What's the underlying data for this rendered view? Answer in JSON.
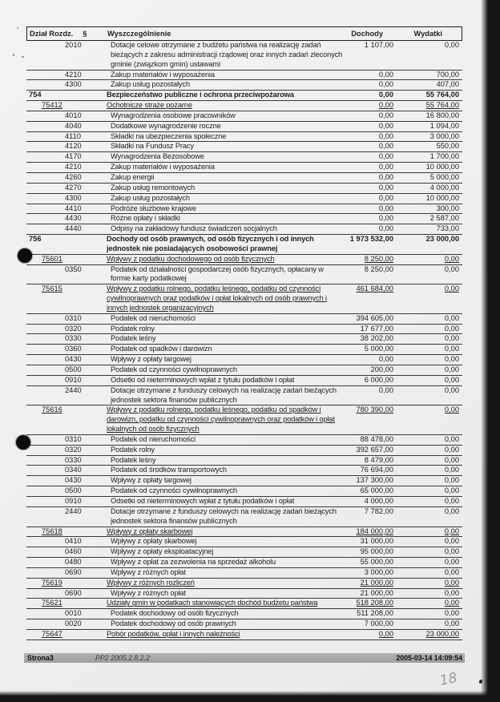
{
  "page": {
    "handwritten_number": "18"
  },
  "header": {
    "col_dzial_rozdz": "Dział Rozdz.",
    "col_paragraph": "§",
    "col_name": "Wyszczególnienie",
    "col_dochody": "Dochody",
    "col_wydatki": "Wydatki"
  },
  "footer": {
    "page_label": "Strona3",
    "app_version": "PP2 2005.2.8.2.2",
    "timestamp": "2005-03-14 14:09:54"
  },
  "table": {
    "rows": [
      {
        "level": "par",
        "code": "2010",
        "name": "Dotacje celowe otrzymane z budżetu państwa na realizację zadań bieżących z zakresu administracji rządowej oraz innych zadań zleconych gminie (związkom gmin) ustawami",
        "dochody": "1 107,00",
        "wydatki": "0,00"
      },
      {
        "level": "par",
        "code": "4210",
        "name": "Zakup materiałów i wyposażenia",
        "dochody": "0,00",
        "wydatki": "700,00"
      },
      {
        "level": "par",
        "code": "4300",
        "name": "Zakup usług pozostałych",
        "dochody": "0,00",
        "wydatki": "407,00"
      },
      {
        "level": "dzial",
        "code": "754",
        "name": "Bezpieczeństwo publiczne i ochrona przeciwpożarowa",
        "dochody": "0,00",
        "wydatki": "55 764,00"
      },
      {
        "level": "rozdz",
        "code": "75412",
        "name": "Ochotnicze straże pożarne",
        "dochody": "0,00",
        "wydatki": "55 764,00"
      },
      {
        "level": "par",
        "code": "4010",
        "name": "Wynagrodzenia osobowe pracowników",
        "dochody": "0,00",
        "wydatki": "16 800,00"
      },
      {
        "level": "par",
        "code": "4040",
        "name": "Dodatkowe wynagrodzenie roczne",
        "dochody": "0,00",
        "wydatki": "1 094,00"
      },
      {
        "level": "par",
        "code": "4110",
        "name": "Składki na ubezpieczenia społeczne",
        "dochody": "0,00",
        "wydatki": "3 000,00"
      },
      {
        "level": "par",
        "code": "4120",
        "name": "Składki na Fundusz Pracy",
        "dochody": "0,00",
        "wydatki": "550,00"
      },
      {
        "level": "par",
        "code": "4170",
        "name": "Wynagrodzenia Bezosobowe",
        "dochody": "0,00",
        "wydatki": "1 700,00"
      },
      {
        "level": "par",
        "code": "4210",
        "name": "Zakup materiałów i wyposażenia",
        "dochody": "0,00",
        "wydatki": "10 000,00"
      },
      {
        "level": "par",
        "code": "4260",
        "name": "Zakup energii",
        "dochody": "0,00",
        "wydatki": "5 000,00"
      },
      {
        "level": "par",
        "code": "4270",
        "name": "Zakup usług remontowych",
        "dochody": "0,00",
        "wydatki": "4 000,00"
      },
      {
        "level": "par",
        "code": "4300",
        "name": "Zakup usług pozostałych",
        "dochody": "0,00",
        "wydatki": "10 000,00"
      },
      {
        "level": "par",
        "code": "4410",
        "name": "Podróże służbowe krajowe",
        "dochody": "0,00",
        "wydatki": "300,00"
      },
      {
        "level": "par",
        "code": "4430",
        "name": "Różne opłaty i składki",
        "dochody": "0,00",
        "wydatki": "2 587,00"
      },
      {
        "level": "par",
        "code": "4440",
        "name": "Odpisy na zakładowy fundusz świadczeń socjalnych",
        "dochody": "0,00",
        "wydatki": "733,00"
      },
      {
        "level": "dzial",
        "code": "756",
        "name": "Dochody od osób prawnych, od osób fizycznych i od innych jednostek nie posiadających osobowości prawnej",
        "dochody": "1 973 532,00",
        "wydatki": "23 000,00"
      },
      {
        "level": "rozdz",
        "code": "75601",
        "name": "Wpływy z podatku dochodowego od osób fizycznych",
        "dochody": "8 250,00",
        "wydatki": "0,00"
      },
      {
        "level": "par",
        "code": "0350",
        "name": "Podatek od działalności gospodarczej osób fizycznych, opłacany w formie karty podatkowej",
        "dochody": "8 250,00",
        "wydatki": "0,00"
      },
      {
        "level": "rozdz",
        "code": "75615",
        "name": "Wpływy z podatku rolnego, podatku leśnego, podatku od czynności cywilnoprawnych oraz podatków i opłat lokalnych od osób prawnych i innych jednostek organizacyjnych",
        "dochody": "461 684,00",
        "wydatki": "0,00"
      },
      {
        "level": "par",
        "code": "0310",
        "name": "Podatek od nieruchomości",
        "dochody": "394 605,00",
        "wydatki": "0,00"
      },
      {
        "level": "par",
        "code": "0320",
        "name": "Podatek rolny",
        "dochody": "17 677,00",
        "wydatki": "0,00"
      },
      {
        "level": "par",
        "code": "0330",
        "name": "Podatek leśny",
        "dochody": "38 202,00",
        "wydatki": "0,00"
      },
      {
        "level": "par",
        "code": "0360",
        "name": "Podatek od spadków i darowizn",
        "dochody": "5 000,00",
        "wydatki": "0,00"
      },
      {
        "level": "par",
        "code": "0430",
        "name": "Wpływy z opłaty targowej",
        "dochody": "0,00",
        "wydatki": "0,00"
      },
      {
        "level": "par",
        "code": "0500",
        "name": "Podatek od czynności cywilnoprawnych",
        "dochody": "200,00",
        "wydatki": "0,00"
      },
      {
        "level": "par",
        "code": "0910",
        "name": "Odsetki od nieterminowych wpłat z tytułu podatków i opłat",
        "dochody": "6 000,00",
        "wydatki": "0,00"
      },
      {
        "level": "par",
        "code": "2440",
        "name": "Dotacje otrzymane z funduszy celowych na realizację zadań bieżących jednostek sektora finansów publicznych",
        "dochody": "0,00",
        "wydatki": "0,00"
      },
      {
        "level": "rozdz",
        "code": "75616",
        "name": "Wpływy z podatku rolnego, podatku leśnego, podatku od spadków i darowizn, podatku od czynności cywilnoprawnych oraz podatków i opłat lokalnych od osób fizycznych",
        "dochody": "780 390,00",
        "wydatki": "0,00"
      },
      {
        "level": "par",
        "code": "0310",
        "name": "Podatek od nieruchomości",
        "dochody": "88 478,00",
        "wydatki": "0,00"
      },
      {
        "level": "par",
        "code": "0320",
        "name": "Podatek rolny",
        "dochody": "392 657,00",
        "wydatki": "0,00"
      },
      {
        "level": "par",
        "code": "0330",
        "name": "Podatek leśny",
        "dochody": "8 479,00",
        "wydatki": "0,00"
      },
      {
        "level": "par",
        "code": "0340",
        "name": "Podatek od środków transportowych",
        "dochody": "76 694,00",
        "wydatki": "0,00"
      },
      {
        "level": "par",
        "code": "0430",
        "name": "Wpływy z opłaty targowej",
        "dochody": "137 300,00",
        "wydatki": "0,00"
      },
      {
        "level": "par",
        "code": "0500",
        "name": "Podatek od czynności cywilnoprawnych",
        "dochody": "65 000,00",
        "wydatki": "0,00"
      },
      {
        "level": "par",
        "code": "0910",
        "name": "Odsetki od nieterminowych wpłat z tytułu podatków i opłat",
        "dochody": "4 000,00",
        "wydatki": "0,00"
      },
      {
        "level": "par",
        "code": "2440",
        "name": "Dotacje otrzymane z funduszy celowych na realizację zadań bieżących jednostek sektora finansów publicznych",
        "dochody": "7 782,00",
        "wydatki": "0,00"
      },
      {
        "level": "rozdz",
        "code": "75618",
        "name": "Wpływy z opłaty skarbowej",
        "dochody": "184 000,00",
        "wydatki": "0,00"
      },
      {
        "level": "par",
        "code": "0410",
        "name": "Wpływy z opłaty skarbowej",
        "dochody": "31 000,00",
        "wydatki": "0,00"
      },
      {
        "level": "par",
        "code": "0460",
        "name": "Wpływy z opłaty eksploatacyjnej",
        "dochody": "95 000,00",
        "wydatki": "0,00"
      },
      {
        "level": "par",
        "code": "0480",
        "name": "Wpływy z opłat za zezwolenia na sprzedaż alkoholu",
        "dochody": "55 000,00",
        "wydatki": "0,00"
      },
      {
        "level": "par",
        "code": "0690",
        "name": "Wpływy z różnych opłat",
        "dochody": "3 000,00",
        "wydatki": "0,00"
      },
      {
        "level": "rozdz",
        "code": "75619",
        "name": "Wpływy z różnych rozliczeń",
        "dochody": "21 000,00",
        "wydatki": "0,00"
      },
      {
        "level": "par",
        "code": "0690",
        "name": "Wpływy z różnych opłat",
        "dochody": "21 000,00",
        "wydatki": "0,00"
      },
      {
        "level": "rozdz",
        "code": "75621",
        "name": "Udziały gmin w podatkach stanowiących dochód budżetu państwa",
        "dochody": "518 208,00",
        "wydatki": "0,00"
      },
      {
        "level": "par",
        "code": "0010",
        "name": "Podatek dochodowy od osób fizycznych",
        "dochody": "511 208,00",
        "wydatki": "0,00"
      },
      {
        "level": "par",
        "code": "0020",
        "name": "Podatek dochodowy od osób prawnych",
        "dochody": "7 000,00",
        "wydatki": "0,00"
      },
      {
        "level": "rozdz",
        "code": "75647",
        "name": "Pobór podatków, opłat i innych należności",
        "dochody": "0,00",
        "wydatki": "23 000,00"
      }
    ]
  }
}
